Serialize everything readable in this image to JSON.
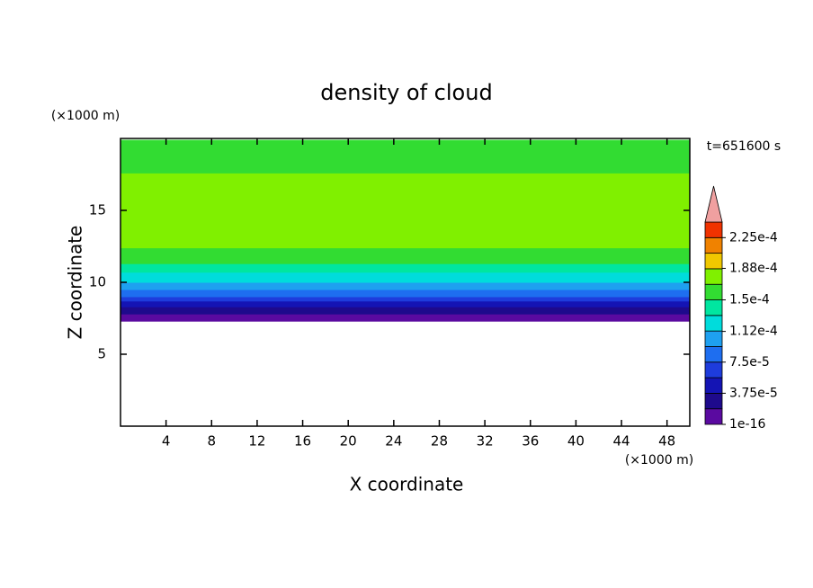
{
  "chart_data": {
    "type": "contour",
    "title": "density of cloud",
    "x_label": "X coordinate",
    "y_label": "Z coordinate",
    "x_unit": "(×1000 m)",
    "y_unit": "(×1000 m)",
    "time_label": "t=651600 s",
    "xlim": [
      0,
      50
    ],
    "xticks": [
      4,
      8,
      12,
      16,
      20,
      24,
      28,
      32,
      36,
      40,
      44,
      48
    ],
    "ylim": [
      0,
      20
    ],
    "yticks": [
      5,
      10,
      15
    ],
    "field": {
      "z_bottom": [
        7.3,
        7.8,
        8.3,
        8.7,
        9.0,
        9.5,
        10.0,
        10.7,
        11.3,
        12.4,
        17.6,
        19.2
      ],
      "z_top": [
        7.8,
        8.3,
        8.7,
        9.0,
        9.5,
        10.0,
        10.7,
        11.3,
        12.4,
        17.6,
        19.2,
        19.9
      ],
      "values": [
        9e-06,
        2.8e-05,
        4.7e-05,
        6.5e-05,
        8.4e-05,
        0.000103,
        0.000122,
        0.00014,
        0.00016,
        0.000175,
        0.00016,
        0.000155
      ]
    },
    "colorbar": {
      "clim": [
        0,
        0.00024375
      ],
      "colors": [
        "#5a0aa0",
        "#1e0a8c",
        "#1414b4",
        "#1e3cdc",
        "#1e6ef0",
        "#1ea0f0",
        "#00dcdc",
        "#00e6a0",
        "#32dc32",
        "#80f000",
        "#f0c800",
        "#f08200",
        "#f03200"
      ],
      "extend_color": "#f0a0a0",
      "ticks": [
        1e-16,
        {
          "value": 3.75e-05,
          "label": "3.75e-5"
        },
        {
          "value": 7.5e-05,
          "label": "7.5e-5"
        },
        {
          "value": 0.000112,
          "label": "1.12e-4"
        },
        {
          "value": 0.00015,
          "label": "1.5e-4"
        },
        {
          "value": 0.000188,
          "label": "1.88e-4"
        },
        {
          "value": 0.000225,
          "label": "2.25e-4"
        }
      ]
    }
  }
}
